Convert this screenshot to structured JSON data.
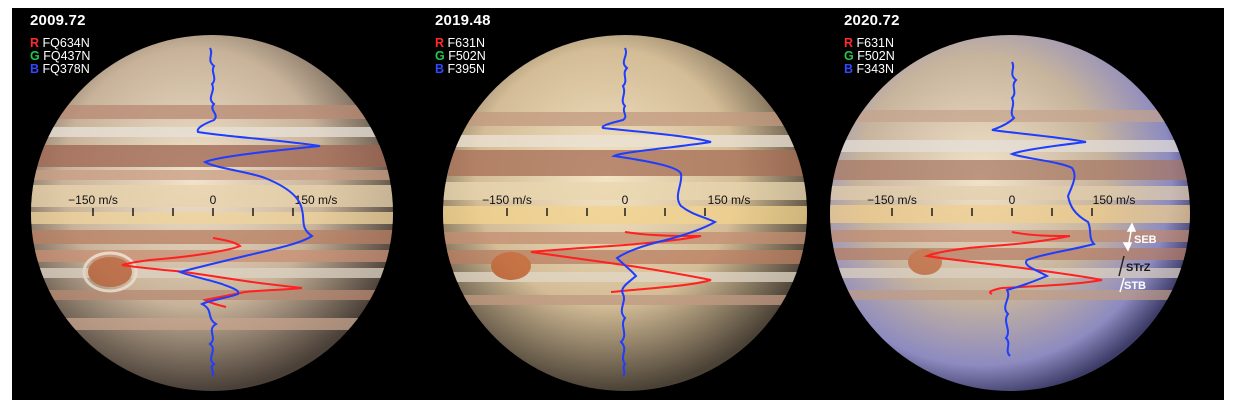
{
  "panels": [
    {
      "epoch": "2009.72",
      "filters": [
        {
          "channel": "R",
          "name": "FQ634N",
          "color": "#ff2a2a"
        },
        {
          "channel": "G",
          "name": "FQ437N",
          "color": "#22c84a"
        },
        {
          "channel": "B",
          "name": "FQ378N",
          "color": "#2f49ff"
        }
      ],
      "speed_labels": {
        "left": "−150 m/s",
        "center": "0",
        "right": "150 m/s"
      }
    },
    {
      "epoch": "2019.48",
      "filters": [
        {
          "channel": "R",
          "name": "F631N",
          "color": "#ff2a2a"
        },
        {
          "channel": "G",
          "name": "F502N",
          "color": "#22c84a"
        },
        {
          "channel": "B",
          "name": "F395N",
          "color": "#2f49ff"
        }
      ],
      "speed_labels": {
        "left": "−150 m/s",
        "center": "0",
        "right": "150 m/s"
      }
    },
    {
      "epoch": "2020.72",
      "filters": [
        {
          "channel": "R",
          "name": "F631N",
          "color": "#ff2a2a"
        },
        {
          "channel": "G",
          "name": "F502N",
          "color": "#22c84a"
        },
        {
          "channel": "B",
          "name": "F343N",
          "color": "#2f49ff"
        }
      ],
      "speed_labels": {
        "left": "−150 m/s",
        "center": "0",
        "right": "150 m/s"
      },
      "belt_labels": {
        "seb": "SEB",
        "strz": "STrZ",
        "stb": "STB"
      }
    }
  ],
  "colors": {
    "background": "#000000",
    "red_profile": "#ff2020",
    "blue_profile": "#1f3dff"
  }
}
